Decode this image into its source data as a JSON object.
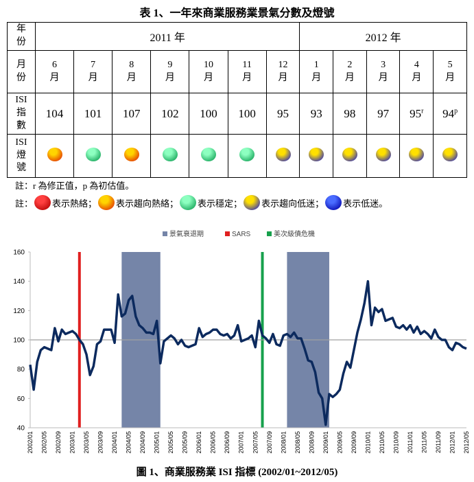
{
  "table": {
    "title": "表 1、一年來商業服務業景氣分數及燈號",
    "row_headers": [
      "年份",
      "月份",
      "ISI指數",
      "ISI燈號"
    ],
    "years": [
      {
        "label": "2011 年",
        "months": [
          "6月",
          "7月",
          "8月",
          "9月",
          "10月",
          "11月",
          "12月"
        ]
      },
      {
        "label": "2012 年",
        "months": [
          "1月",
          "2月",
          "3月",
          "4月",
          "5月"
        ]
      }
    ],
    "isi": [
      {
        "value": 104
      },
      {
        "value": 101
      },
      {
        "value": 107
      },
      {
        "value": 102
      },
      {
        "value": 100
      },
      {
        "value": 100
      },
      {
        "value": 95
      },
      {
        "value": 93
      },
      {
        "value": 98
      },
      {
        "value": 97
      },
      {
        "value": 95,
        "mark": "r"
      },
      {
        "value": 94,
        "mark": "p"
      }
    ],
    "lights": [
      [
        "#ffd400",
        "#e02800"
      ],
      [
        "#8dffc0",
        "#0c9c50"
      ],
      [
        "#ffd400",
        "#e02800"
      ],
      [
        "#8dffc0",
        "#0c9c50"
      ],
      [
        "#8dffc0",
        "#0c9c50"
      ],
      [
        "#8dffc0",
        "#0c9c50"
      ],
      [
        "#ffe000",
        "#2222c8"
      ],
      [
        "#ffe000",
        "#2222c8"
      ],
      [
        "#ffe000",
        "#2222c8"
      ],
      [
        "#ffe000",
        "#2222c8"
      ],
      [
        "#ffe000",
        "#2222c8"
      ],
      [
        "#ffe000",
        "#2222c8"
      ]
    ]
  },
  "notes": {
    "revision": "註：r 為修正值，p 為初估值。",
    "prefix": "註：",
    "lights": [
      {
        "colors": [
          "#ff4040",
          "#b00000"
        ],
        "label": "表示熱絡；"
      },
      {
        "colors": [
          "#ffd400",
          "#e02800"
        ],
        "label": "表示趨向熱絡；"
      },
      {
        "colors": [
          "#8dffc0",
          "#0c9c50"
        ],
        "label": "表示穩定；"
      },
      {
        "colors": [
          "#ffe000",
          "#2222c8"
        ],
        "label": "表示趨向低迷；"
      },
      {
        "colors": [
          "#4a6cff",
          "#0000a8"
        ],
        "label": "表示低迷。"
      }
    ]
  },
  "chart_data": {
    "type": "line",
    "categories": [
      "2002/01",
      null,
      null,
      null,
      "2002/05",
      null,
      null,
      null,
      "2002/09",
      null,
      null,
      null,
      "2003/01",
      null,
      null,
      null,
      "2003/05",
      null,
      null,
      null,
      "2003/09",
      null,
      null,
      null,
      "2004/01",
      null,
      null,
      null,
      "2004/05",
      null,
      null,
      null,
      "2004/09",
      null,
      null,
      null,
      "2005/01",
      null,
      null,
      null,
      "2005/05",
      null,
      null,
      null,
      "2005/09",
      null,
      null,
      null,
      "2006/01",
      null,
      null,
      null,
      "2006/05",
      null,
      null,
      null,
      "2006/09",
      null,
      null,
      null,
      "2007/01",
      null,
      null,
      null,
      "2007/05",
      null,
      null,
      null,
      "2007/09",
      null,
      null,
      null,
      "2008/01",
      null,
      null,
      null,
      "2008/05",
      null,
      null,
      null,
      "2008/09",
      null,
      null,
      null,
      "2009/01",
      null,
      null,
      null,
      "2009/05",
      null,
      null,
      null,
      "2009/09",
      null,
      null,
      null,
      "2010/01",
      null,
      null,
      null,
      "2010/05",
      null,
      null,
      null,
      "2010/09",
      null,
      null,
      null,
      "2011/01",
      null,
      null,
      null,
      "2011/05",
      null,
      null,
      null,
      "2011/09",
      null,
      null,
      null,
      "2012/01",
      null,
      null,
      null,
      "2012/05"
    ],
    "series": [
      {
        "color": "#0c2a5e",
        "values": [
          83,
          66,
          85,
          93,
          95,
          94,
          93,
          108,
          99,
          107,
          104,
          105,
          106,
          104,
          100,
          97,
          90,
          76,
          82,
          97,
          99,
          107,
          107,
          107,
          98,
          131,
          116,
          118,
          127,
          130,
          116,
          110,
          108,
          105,
          105,
          104,
          113,
          84,
          99,
          101,
          103,
          101,
          97,
          100,
          96,
          95,
          96,
          97,
          108,
          102,
          104,
          105,
          107,
          107,
          104,
          103,
          104,
          101,
          103,
          110,
          99,
          100,
          101,
          103,
          95,
          113,
          103,
          101,
          98,
          104,
          97,
          96,
          103,
          104,
          102,
          105,
          101,
          101,
          94,
          86,
          85,
          78,
          64,
          60,
          42,
          63,
          61,
          63,
          66,
          77,
          85,
          81,
          93,
          105,
          114,
          125,
          140,
          110,
          122,
          119,
          121,
          113,
          114,
          115,
          109,
          108,
          110,
          107,
          110,
          105,
          109,
          104,
          106,
          104,
          101,
          107,
          102,
          100,
          100,
          95,
          93,
          98,
          97,
          95,
          94
        ]
      }
    ],
    "ylim": [
      40,
      160
    ],
    "yticks": [
      40,
      60,
      80,
      100,
      120,
      140,
      160
    ],
    "reference": {
      "value": 100,
      "color": "#a0a0a0"
    },
    "bands": {
      "name": "景氣衰退期",
      "color": "#7585a8",
      "ranges": [
        [
          "2004/03",
          "2005/02"
        ],
        [
          "2008/02",
          "2009/02"
        ]
      ]
    },
    "markers": [
      {
        "name": "SARS",
        "color": "#e02020",
        "at": "2003/03"
      },
      {
        "name": "美次級債危機",
        "color": "#17a04c",
        "at": "2007/07"
      }
    ]
  },
  "caption": "圖 1、商業服務業 ISI 指標 (2002/01~2012/05)"
}
